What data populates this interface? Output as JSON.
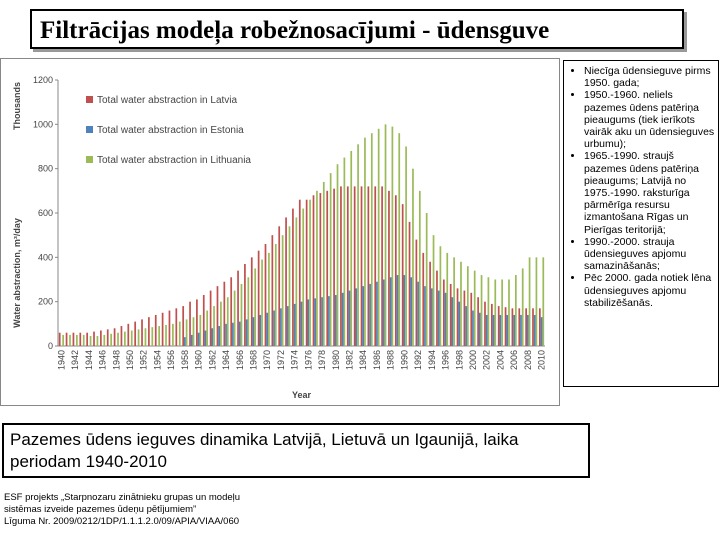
{
  "slide": {
    "title": "Filtrācijas modeļa robežnosacījumi - ūdensguve",
    "bullets": [
      "Niecīga ūdensieguve pirms 1950. gada;",
      "1950.-1960. neliels pazemes ūdens patēriņa pieaugums (tiek ierīkots vairāk aku un ūdensieguves urbumu);",
      "1965.-1990. straujš pazemes ūdens patēriņa pieaugums; Latvijā no 1975.-1990. raksturīga pārmērīga resursu izmantošana Rīgas un Pierīgas teritorijā;",
      "1990.-2000. strauja ūdensieguves apjomu samazināšanās;",
      "Pēc 2000. gada notiek lēna ūdensieguves apjomu stabilizēšanās."
    ],
    "caption": "Pazemes ūdens ieguves dinamika Latvijā, Lietuvā un Igaunijā, laika periodam 1940-2010",
    "footer": [
      "ESF projekts „Starpnozaru zinātnieku grupas un modeļu",
      "sistēmas izveide pazemes ūdeņu pētījumiem”",
      "Līguma Nr. 2009/0212/1DP/1.1.1.2.0/09/APIA/VIAA/060"
    ]
  },
  "chart_data": {
    "type": "bar",
    "x_label": "Year",
    "y_label": "Water abstraction, m³/day",
    "y_unit": "Thousands",
    "categories": [
      "1940",
      null,
      "1942",
      null,
      "1944",
      null,
      "1946",
      null,
      "1948",
      null,
      "1950",
      null,
      "1952",
      null,
      "1954",
      null,
      "1956",
      null,
      "1958",
      null,
      "1960",
      null,
      "1962",
      null,
      "1964",
      null,
      "1966",
      null,
      "1968",
      null,
      "1970",
      null,
      "1972",
      null,
      "1974",
      null,
      "1976",
      null,
      "1978",
      null,
      "1980",
      null,
      "1982",
      null,
      "1984",
      null,
      "1986",
      null,
      "1988",
      null,
      "1990",
      null,
      "1992",
      null,
      "1994",
      null,
      "1996",
      null,
      "1998",
      null,
      "2000",
      null,
      "2002",
      null,
      "2004",
      null,
      "2006",
      null,
      "2008",
      null,
      "2010"
    ],
    "series": [
      {
        "name": "Total water abstraction in Latvia",
        "color": "#c0504d",
        "values": [
          60,
          60,
          60,
          60,
          60,
          65,
          70,
          75,
          80,
          90,
          100,
          110,
          120,
          130,
          140,
          150,
          160,
          170,
          180,
          200,
          210,
          230,
          250,
          270,
          290,
          310,
          340,
          370,
          400,
          430,
          460,
          500,
          540,
          580,
          620,
          660,
          660,
          680,
          690,
          700,
          710,
          720,
          720,
          720,
          720,
          720,
          720,
          720,
          700,
          680,
          640,
          560,
          480,
          420,
          380,
          340,
          300,
          280,
          260,
          250,
          240,
          220,
          200,
          190,
          180,
          175,
          170,
          170,
          170,
          170,
          170
        ]
      },
      {
        "name": "Total water abstraction in Estonia",
        "color": "#4f81bd",
        "values": [
          null,
          null,
          null,
          null,
          null,
          null,
          null,
          null,
          null,
          null,
          null,
          null,
          null,
          null,
          null,
          null,
          null,
          null,
          40,
          50,
          60,
          70,
          80,
          90,
          100,
          105,
          110,
          120,
          130,
          140,
          150,
          160,
          170,
          180,
          190,
          200,
          210,
          215,
          220,
          225,
          230,
          240,
          250,
          260,
          270,
          280,
          290,
          300,
          310,
          320,
          320,
          310,
          290,
          270,
          260,
          250,
          240,
          220,
          200,
          180,
          160,
          150,
          140,
          140,
          140,
          140,
          140,
          140,
          140,
          140,
          130
        ]
      },
      {
        "name": "Total water abstraction in Lithuania",
        "color": "#9bbb59",
        "values": [
          50,
          50,
          50,
          50,
          45,
          45,
          50,
          55,
          60,
          65,
          70,
          75,
          80,
          85,
          90,
          95,
          100,
          110,
          120,
          130,
          140,
          160,
          180,
          200,
          220,
          250,
          280,
          310,
          350,
          390,
          420,
          460,
          500,
          540,
          580,
          620,
          660,
          700,
          740,
          780,
          820,
          850,
          880,
          910,
          940,
          960,
          980,
          1000,
          990,
          960,
          900,
          800,
          700,
          600,
          500,
          450,
          420,
          400,
          380,
          360,
          340,
          320,
          310,
          300,
          300,
          300,
          320,
          350,
          400,
          400,
          400
        ]
      }
    ],
    "ylim": [
      0,
      1200
    ],
    "yticks": [
      0,
      200,
      400,
      600,
      800,
      1000,
      1200
    ],
    "grid": false,
    "legend": "top-left"
  }
}
